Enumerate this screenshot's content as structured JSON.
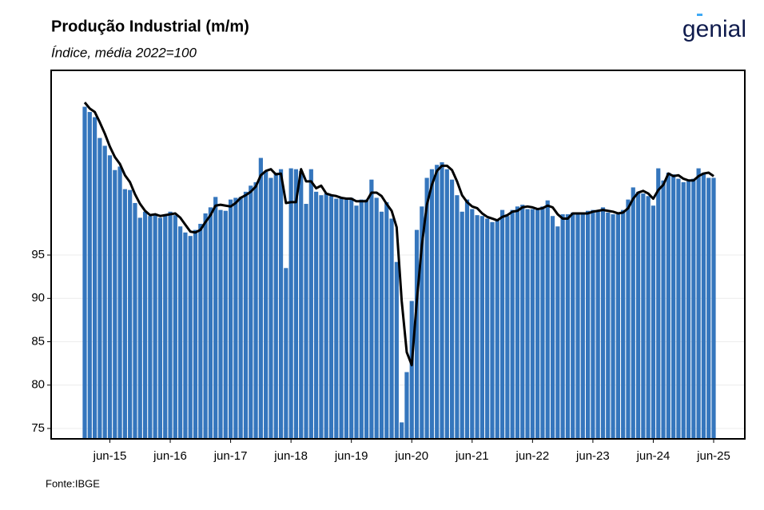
{
  "chart_data": {
    "type": "bar_line",
    "title": "Produção Industrial (m/m)",
    "subtitle": "Índice, média 2022=100",
    "source": "Fonte:IBGE",
    "logo": "genial",
    "categories": [
      null,
      null,
      null,
      null,
      null,
      "jun-15",
      null,
      null,
      null,
      null,
      null,
      null,
      null,
      null,
      null,
      null,
      null,
      "jun-16",
      null,
      null,
      null,
      null,
      null,
      null,
      null,
      null,
      null,
      null,
      null,
      "jun-17",
      null,
      null,
      null,
      null,
      null,
      null,
      null,
      null,
      null,
      null,
      null,
      "jun-18",
      null,
      null,
      null,
      null,
      null,
      null,
      null,
      null,
      null,
      null,
      null,
      "jun-19",
      null,
      null,
      null,
      null,
      null,
      null,
      null,
      null,
      null,
      null,
      null,
      "jun-20",
      null,
      null,
      null,
      null,
      null,
      null,
      null,
      null,
      null,
      null,
      null,
      "jun-21",
      null,
      null,
      null,
      null,
      null,
      null,
      null,
      null,
      null,
      null,
      null,
      "jun-22",
      null,
      null,
      null,
      null,
      null,
      null,
      null,
      null,
      null,
      null,
      null,
      "jun-23",
      null,
      null,
      null,
      null,
      null,
      null,
      null,
      null,
      null,
      null,
      null,
      "jun-24",
      null,
      null,
      null,
      null,
      null,
      null,
      null,
      null,
      null,
      null,
      null,
      "jun-25"
    ],
    "series": [
      {
        "kind": "bar",
        "color": "#3576bd",
        "values": [
          112.1,
          111.5,
          110.9,
          108.5,
          107.6,
          106.5,
          104.8,
          105.2,
          102.6,
          102.5,
          101.0,
          99.3,
          100.0,
          99.5,
          99.7,
          99.3,
          99.7,
          100.0,
          99.6,
          98.3,
          97.6,
          97.2,
          97.9,
          98.6,
          99.8,
          100.5,
          101.7,
          100.2,
          100.1,
          101.4,
          101.6,
          101.7,
          102.3,
          103.0,
          103.4,
          106.2,
          104.6,
          103.9,
          104.5,
          104.9,
          93.5,
          105.0,
          104.9,
          104.7,
          100.9,
          104.9,
          102.3,
          101.9,
          102.1,
          101.8,
          101.5,
          101.6,
          101.4,
          101.6,
          100.7,
          101.4,
          101.4,
          103.7,
          101.6,
          100.0,
          101.1,
          99.2,
          94.2,
          75.7,
          81.5,
          89.7,
          97.9,
          100.6,
          103.9,
          104.9,
          105.4,
          105.7,
          104.9,
          103.7,
          101.9,
          100.0,
          101.4,
          100.3,
          99.6,
          99.5,
          99.2,
          98.8,
          99.1,
          100.2,
          99.5,
          100.2,
          100.6,
          100.8,
          100.3,
          100.3,
          100.3,
          100.6,
          101.3,
          99.5,
          98.3,
          99.7,
          99.7,
          99.9,
          99.7,
          99.7,
          100.1,
          100.2,
          100.0,
          100.5,
          99.9,
          99.7,
          99.7,
          100.2,
          101.4,
          102.8,
          102.3,
          102.1,
          101.8,
          100.7,
          105.0,
          103.6,
          104.5,
          104.3,
          103.8,
          103.4,
          103.5,
          103.8,
          105.0,
          104.5,
          103.9,
          103.9
        ]
      },
      {
        "kind": "line",
        "color": "#000000",
        "values": [
          112.6,
          111.9,
          111.5,
          110.3,
          109.0,
          107.5,
          106.3,
          105.5,
          104.2,
          103.4,
          102.0,
          100.9,
          100.1,
          99.6,
          99.7,
          99.5,
          99.6,
          99.7,
          99.8,
          99.3,
          98.5,
          97.7,
          97.6,
          97.9,
          98.8,
          99.6,
          100.7,
          100.8,
          100.7,
          100.6,
          101.0,
          101.6,
          101.9,
          102.3,
          102.9,
          104.2,
          104.7,
          104.9,
          104.3,
          104.4,
          101.0,
          101.1,
          101.1,
          104.9,
          103.5,
          103.5,
          102.7,
          103.0,
          102.1,
          101.9,
          101.8,
          101.6,
          101.5,
          101.5,
          101.2,
          101.2,
          101.2,
          102.2,
          102.2,
          101.8,
          100.9,
          100.1,
          98.2,
          89.7,
          83.8,
          82.3,
          89.7,
          96.1,
          100.8,
          103.1,
          104.7,
          105.3,
          105.3,
          104.8,
          103.5,
          101.9,
          101.1,
          100.6,
          100.4,
          99.8,
          99.4,
          99.2,
          99.0,
          99.4,
          99.6,
          100.0,
          100.1,
          100.5,
          100.6,
          100.5,
          100.3,
          100.4,
          100.7,
          100.5,
          99.7,
          99.2,
          99.2,
          99.8,
          99.8,
          99.8,
          99.8,
          100.0,
          100.1,
          100.2,
          100.1,
          100.0,
          99.8,
          99.9,
          100.4,
          101.5,
          102.2,
          102.4,
          102.1,
          101.5,
          102.5,
          103.1,
          104.4,
          104.1,
          104.2,
          103.8,
          103.6,
          103.6,
          104.1,
          104.4,
          104.5,
          104.1
        ]
      }
    ],
    "ylim": [
      73.8,
      116.3
    ],
    "yticks": [
      75,
      80,
      85,
      90,
      95
    ],
    "grid": true
  }
}
